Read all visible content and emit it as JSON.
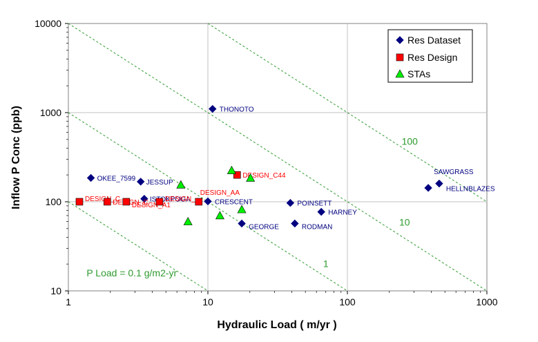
{
  "chart_data": {
    "type": "scatter",
    "xlabel": "Hydraulic Load ( m/yr )",
    "ylabel": "Inflow P Conc (ppb)",
    "x_scale": "log",
    "y_scale": "log",
    "xlim": [
      1,
      1000
    ],
    "ylim": [
      10,
      10000
    ],
    "x_ticks": [
      "1",
      "10",
      "100",
      "1000"
    ],
    "y_ticks": [
      "10",
      "100",
      "1000",
      "10000"
    ],
    "grid": true,
    "legend_position": "top-right",
    "colors": {
      "res_dataset": "#000080",
      "res_design": "#ff0000",
      "stas": "#00ee00",
      "label_dataset": "#000080",
      "label_design": "#ff0000",
      "load_lines": "#2e9a2e"
    },
    "series": [
      {
        "name": "Res Dataset",
        "marker": "diamond",
        "points": [
          {
            "x": 1.45,
            "y": 185,
            "label": "OKEE_7599"
          },
          {
            "x": 3.3,
            "y": 168,
            "label": "JESSUP"
          },
          {
            "x": 3.5,
            "y": 108,
            "label": "ISTOKPOGA"
          },
          {
            "x": 10.8,
            "y": 1100,
            "label": "THONOTO"
          },
          {
            "x": 10.0,
            "y": 101,
            "label": "CRESCENT"
          },
          {
            "x": 17.5,
            "y": 57,
            "label": "GEORGE"
          },
          {
            "x": 39,
            "y": 97,
            "label": "POINSETT"
          },
          {
            "x": 42,
            "y": 57,
            "label": "RODMAN"
          },
          {
            "x": 65,
            "y": 77,
            "label": "HARNEY"
          },
          {
            "x": 380,
            "y": 143,
            "label": "SAWGRASS"
          },
          {
            "x": 455,
            "y": 160,
            "label": "HELLNBLAZES"
          }
        ]
      },
      {
        "name": "Res Design",
        "marker": "square",
        "points": [
          {
            "x": 1.2,
            "y": 100,
            "label": "DESIGN_C"
          },
          {
            "x": 1.9,
            "y": 100,
            "label": "DESIGN_C"
          },
          {
            "x": 2.6,
            "y": 100,
            "label": "DESIGN_A1"
          },
          {
            "x": 4.5,
            "y": 100,
            "label": "DESIGN_"
          },
          {
            "x": 8.6,
            "y": 100,
            "label": "DESIGN_AA"
          },
          {
            "x": 16.2,
            "y": 200,
            "label": "DESIGN_C44"
          }
        ]
      },
      {
        "name": "STAs",
        "marker": "triangle",
        "points": [
          {
            "x": 6.4,
            "y": 155
          },
          {
            "x": 7.2,
            "y": 60
          },
          {
            "x": 12.2,
            "y": 70
          },
          {
            "x": 14.8,
            "y": 225
          },
          {
            "x": 17.5,
            "y": 82
          },
          {
            "x": 20.2,
            "y": 185
          }
        ]
      }
    ],
    "load_lines": [
      {
        "load": 0.1,
        "label": "P Load = 0.1 g/m2-yr"
      },
      {
        "load": 1,
        "label": "1"
      },
      {
        "load": 10,
        "label": "10"
      },
      {
        "load": 100,
        "label": "100"
      }
    ]
  }
}
